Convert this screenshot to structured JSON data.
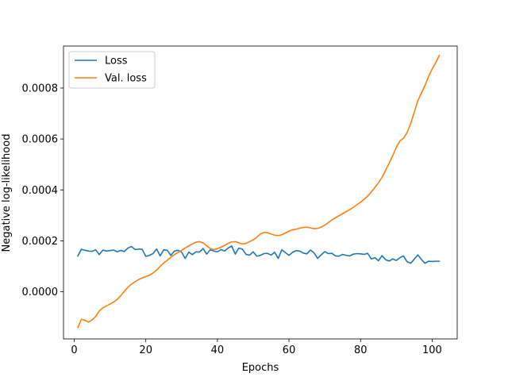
{
  "chart_data": {
    "type": "line",
    "title": "",
    "xlabel": "Epochs",
    "ylabel": "Negative log-likelihood",
    "xlim": [
      -3,
      107
    ],
    "ylim": [
      -0.000185,
      0.000965
    ],
    "xticks": [
      0,
      20,
      40,
      60,
      80,
      100
    ],
    "xtick_labels": [
      "0",
      "20",
      "40",
      "60",
      "80",
      "100"
    ],
    "yticks": [
      0.0,
      0.0002,
      0.0004,
      0.0006,
      0.0008
    ],
    "ytick_labels": [
      "0.0000",
      "0.0002",
      "0.0004",
      "0.0006",
      "0.0008"
    ],
    "grid": false,
    "legend_position": "top-left",
    "series": [
      {
        "name": "Loss",
        "color": "#1f77b4",
        "x": [
          1,
          2,
          3,
          4,
          5,
          6,
          7,
          8,
          9,
          10,
          11,
          12,
          13,
          14,
          15,
          16,
          17,
          18,
          19,
          20,
          21,
          22,
          23,
          24,
          25,
          26,
          27,
          28,
          29,
          30,
          31,
          32,
          33,
          34,
          35,
          36,
          37,
          38,
          39,
          40,
          41,
          42,
          43,
          44,
          45,
          46,
          47,
          48,
          49,
          50,
          51,
          52,
          53,
          54,
          55,
          56,
          57,
          58,
          59,
          60,
          61,
          62,
          63,
          64,
          65,
          66,
          67,
          68,
          69,
          70,
          71,
          72,
          73,
          74,
          75,
          76,
          77,
          78,
          79,
          80,
          81,
          82,
          83,
          84,
          85,
          86,
          87,
          88,
          89,
          90,
          91,
          92,
          93,
          94,
          95,
          96,
          97,
          98,
          99,
          100,
          101,
          102
        ],
        "y": [
          0.000141,
          0.000167,
          0.000163,
          0.00016,
          0.000159,
          0.000165,
          0.000146,
          0.000164,
          0.00016,
          0.000162,
          0.000164,
          0.000157,
          0.000163,
          0.000158,
          0.000172,
          0.000178,
          0.000166,
          0.000168,
          0.000167,
          0.000139,
          0.000143,
          0.00015,
          0.000168,
          0.000141,
          0.000165,
          0.000163,
          0.000143,
          0.00016,
          0.000163,
          0.000156,
          0.000131,
          0.000156,
          0.000146,
          0.000157,
          0.000156,
          0.00017,
          0.000148,
          0.000165,
          0.00016,
          0.000157,
          0.000166,
          0.00016,
          0.000172,
          0.00018,
          0.000148,
          0.000172,
          0.000167,
          0.000147,
          0.000144,
          0.000157,
          0.00014,
          0.000143,
          0.00015,
          0.000151,
          0.000144,
          0.000155,
          0.000131,
          0.000165,
          0.000154,
          0.000143,
          0.000155,
          0.000162,
          0.00016,
          0.000152,
          0.000149,
          0.000164,
          0.000153,
          0.000131,
          0.000145,
          0.000158,
          0.00015,
          0.000151,
          0.000141,
          0.00014,
          0.000147,
          0.000143,
          0.000141,
          0.000148,
          0.00015,
          0.000149,
          0.000147,
          0.000151,
          0.000129,
          0.000134,
          0.000122,
          0.000142,
          0.000126,
          0.000121,
          0.000129,
          0.000123,
          0.000134,
          0.000141,
          0.000118,
          0.000112,
          0.000128,
          0.000145,
          0.000127,
          0.000112,
          0.00012,
          0.000119,
          0.00012,
          0.00012
        ]
      },
      {
        "name": "Val. loss",
        "color": "#ff7f0e",
        "x": [
          1,
          2,
          3,
          4,
          5,
          6,
          7,
          8,
          9,
          10,
          11,
          12,
          13,
          14,
          15,
          16,
          17,
          18,
          19,
          20,
          21,
          22,
          23,
          24,
          25,
          26,
          27,
          28,
          29,
          30,
          31,
          32,
          33,
          34,
          35,
          36,
          37,
          38,
          39,
          40,
          41,
          42,
          43,
          44,
          45,
          46,
          47,
          48,
          49,
          50,
          51,
          52,
          53,
          54,
          55,
          56,
          57,
          58,
          59,
          60,
          61,
          62,
          63,
          64,
          65,
          66,
          67,
          68,
          69,
          70,
          71,
          72,
          73,
          74,
          75,
          76,
          77,
          78,
          79,
          80,
          81,
          82,
          83,
          84,
          85,
          86,
          87,
          88,
          89,
          90,
          91,
          92,
          93,
          94,
          95,
          96,
          97,
          98,
          99,
          100,
          101,
          102
        ],
        "y": [
          -0.00014,
          -0.000108,
          -0.000112,
          -0.000119,
          -0.00011,
          -9.7e-05,
          -7.5e-05,
          -6.3e-05,
          -5.5e-05,
          -4.8e-05,
          -4e-05,
          -3e-05,
          -1.5e-05,
          2e-06,
          1.8e-05,
          3e-05,
          4e-05,
          4.8e-05,
          5.5e-05,
          6e-05,
          6.5e-05,
          7.4e-05,
          8.5e-05,
          0.0001,
          0.000113,
          0.000124,
          0.000136,
          0.000146,
          0.000155,
          0.000163,
          0.000172,
          0.00018,
          0.000188,
          0.000195,
          0.000197,
          0.000192,
          0.000181,
          0.00017,
          0.000166,
          0.000169,
          0.000175,
          0.000182,
          0.00019,
          0.000196,
          0.000197,
          0.000192,
          0.000188,
          0.00019,
          0.000197,
          0.000204,
          0.000214,
          0.000227,
          0.000233,
          0.000232,
          0.000227,
          0.000222,
          0.000221,
          0.000224,
          0.000231,
          0.000238,
          0.000243,
          0.000246,
          0.00025,
          0.000253,
          0.000254,
          0.000251,
          0.000248,
          0.000249,
          0.000254,
          0.000262,
          0.000272,
          0.000282,
          0.000291,
          0.000299,
          0.000307,
          0.000315,
          0.000323,
          0.000332,
          0.000342,
          0.000352,
          0.000363,
          0.000376,
          0.000392,
          0.00041,
          0.000428,
          0.00045,
          0.000477,
          0.000506,
          0.000535,
          0.000568,
          0.000592,
          0.000603,
          0.000625,
          0.00066,
          0.000705,
          0.00075,
          0.00078,
          0.00081,
          0.000845,
          0.000875,
          0.0009,
          0.000928
        ]
      }
    ]
  }
}
